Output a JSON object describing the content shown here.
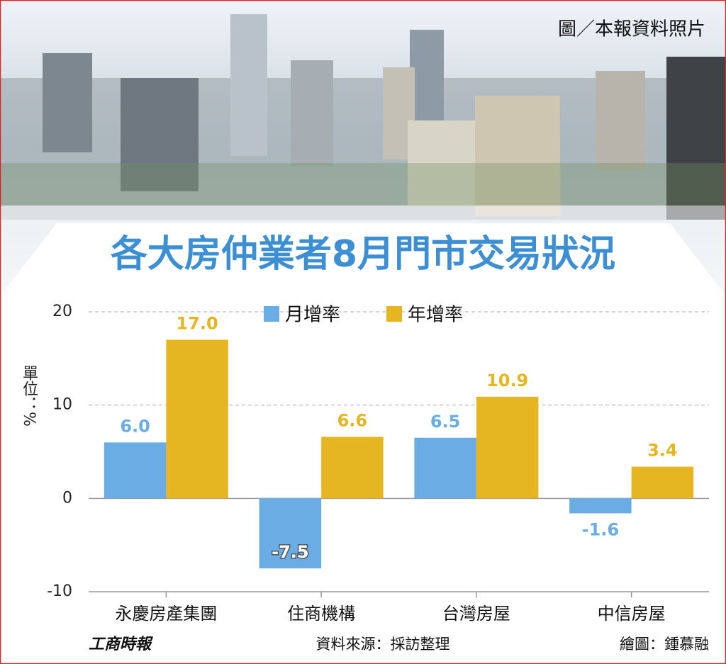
{
  "photo_credit": "圖／本報資料照片",
  "logo": "工商時報",
  "source": "資料來源：採訪整理",
  "illustrator": "繪圖：鍾慕融",
  "chart_data": {
    "type": "bar",
    "title": "各大房仲業者8月門市交易狀況",
    "y_label": "單位：%",
    "categories": [
      "永慶房產集團",
      "住商機構",
      "台灣房屋",
      "中信房屋"
    ],
    "series": [
      {
        "name": "月增率",
        "color": "#6aade4",
        "values": [
          6.0,
          -7.5,
          6.5,
          -1.6
        ],
        "value_labels": [
          "6.0",
          "-7.5",
          "6.5",
          "-1.6"
        ]
      },
      {
        "name": "年增率",
        "color": "#e6b522",
        "values": [
          17.0,
          6.6,
          10.9,
          3.4
        ],
        "value_labels": [
          "17.0",
          "6.6",
          "10.9",
          "3.4"
        ]
      }
    ],
    "ylim": [
      -10,
      20
    ],
    "yticks": [
      -10,
      0,
      10,
      20
    ],
    "grid": true,
    "legend": "top"
  }
}
